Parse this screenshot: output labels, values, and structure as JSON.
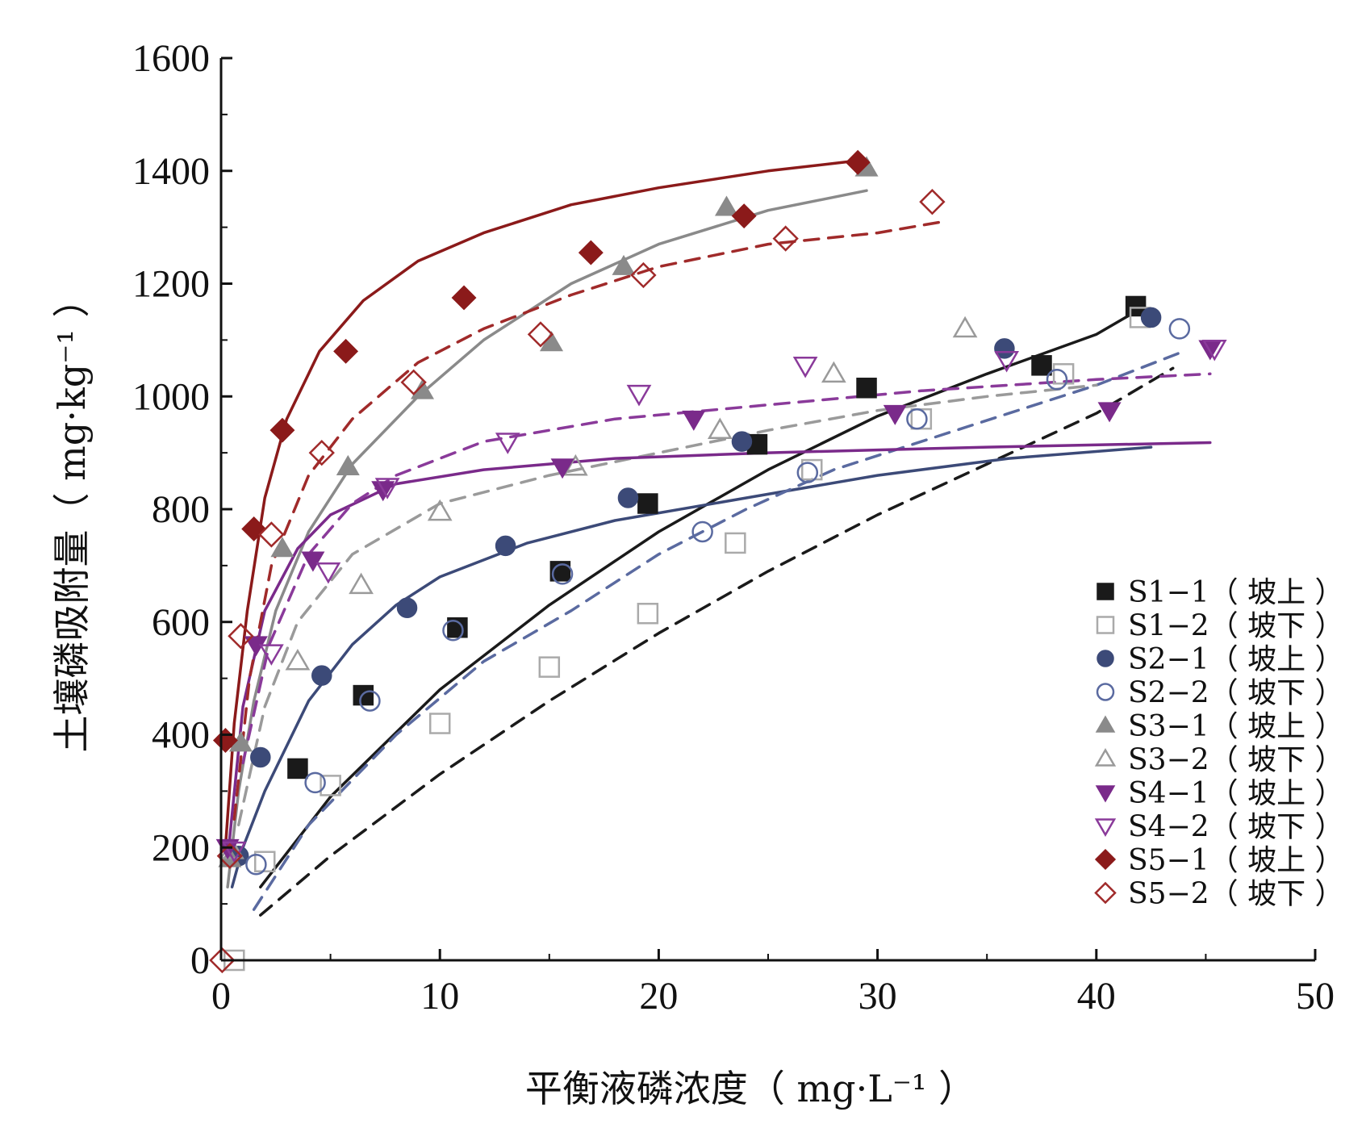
{
  "chart_data": {
    "type": "scatter",
    "xlabel": "平衡液磷浓度（ mg·L⁻¹ ）",
    "ylabel": "土壤磷吸附量（ mg·kg⁻¹ ）",
    "xlim": [
      0,
      50
    ],
    "ylim": [
      0,
      1600
    ],
    "xticks": [
      0,
      10,
      20,
      30,
      40,
      50
    ],
    "yticks": [
      0,
      200,
      400,
      600,
      800,
      1000,
      1200,
      1400,
      1600
    ],
    "grid": false,
    "legend_position": "bottom-right",
    "series": [
      {
        "name": "S1−1（ 坡上 ）",
        "color": "#1a1a1a",
        "marker": "square-filled",
        "line": "solid",
        "points": [
          [
            3.5,
            340
          ],
          [
            6.5,
            470
          ],
          [
            10.8,
            590
          ],
          [
            15.5,
            690
          ],
          [
            19.5,
            810
          ],
          [
            24.5,
            915
          ],
          [
            29.5,
            1015
          ],
          [
            37.5,
            1055
          ],
          [
            41.8,
            1160
          ]
        ],
        "fit": [
          [
            1.8,
            130
          ],
          [
            5,
            290
          ],
          [
            10,
            480
          ],
          [
            15,
            630
          ],
          [
            20,
            760
          ],
          [
            25,
            870
          ],
          [
            30,
            965
          ],
          [
            35,
            1040
          ],
          [
            40,
            1110
          ],
          [
            42,
            1155
          ]
        ]
      },
      {
        "name": "S1−2（ 坡下 ）",
        "color": "#aaaaaa",
        "marker": "square-open",
        "line": "dashed",
        "fit_color": "#1a1a1a",
        "points": [
          [
            0.6,
            0
          ],
          [
            2,
            175
          ],
          [
            5,
            310
          ],
          [
            10,
            420
          ],
          [
            15,
            520
          ],
          [
            19.5,
            615
          ],
          [
            23.5,
            740
          ],
          [
            27,
            870
          ],
          [
            32,
            960
          ],
          [
            38.5,
            1040
          ],
          [
            42,
            1140
          ]
        ],
        "fit": [
          [
            1.8,
            80
          ],
          [
            5,
            185
          ],
          [
            10,
            330
          ],
          [
            15,
            460
          ],
          [
            20,
            580
          ],
          [
            25,
            690
          ],
          [
            30,
            790
          ],
          [
            35,
            880
          ],
          [
            40,
            970
          ],
          [
            43.5,
            1050
          ]
        ]
      },
      {
        "name": "S2−1（ 坡上 ）",
        "color": "#3c4a78",
        "marker": "circle-filled",
        "line": "solid",
        "points": [
          [
            0.8,
            185
          ],
          [
            1.8,
            360
          ],
          [
            4.6,
            505
          ],
          [
            8.5,
            625
          ],
          [
            13,
            735
          ],
          [
            18.6,
            820
          ],
          [
            23.8,
            920
          ],
          [
            35.8,
            1085
          ],
          [
            42.5,
            1140
          ]
        ],
        "fit": [
          [
            0.5,
            130
          ],
          [
            1,
            200
          ],
          [
            2,
            300
          ],
          [
            4,
            460
          ],
          [
            6,
            560
          ],
          [
            8,
            630
          ],
          [
            10,
            680
          ],
          [
            14,
            740
          ],
          [
            18,
            780
          ],
          [
            24,
            820
          ],
          [
            30,
            860
          ],
          [
            36,
            890
          ],
          [
            42.5,
            910
          ]
        ]
      },
      {
        "name": "S2−2（ 坡下 ）",
        "color": "#5a6aa0",
        "marker": "circle-open",
        "line": "dashed",
        "points": [
          [
            1.6,
            170
          ],
          [
            4.3,
            315
          ],
          [
            6.8,
            460
          ],
          [
            10.6,
            585
          ],
          [
            15.6,
            685
          ],
          [
            22,
            760
          ],
          [
            26.8,
            865
          ],
          [
            31.8,
            960
          ],
          [
            38.2,
            1030
          ],
          [
            43.8,
            1120
          ]
        ],
        "fit": [
          [
            1.5,
            90
          ],
          [
            4,
            240
          ],
          [
            8,
            400
          ],
          [
            12,
            530
          ],
          [
            16,
            620
          ],
          [
            20,
            720
          ],
          [
            24,
            800
          ],
          [
            28,
            870
          ],
          [
            32,
            920
          ],
          [
            36,
            970
          ],
          [
            40,
            1020
          ],
          [
            44,
            1080
          ]
        ]
      },
      {
        "name": "S3−1（ 坡上 ）",
        "color": "#8a8a8a",
        "marker": "triangle-filled",
        "line": "solid",
        "points": [
          [
            0.4,
            180
          ],
          [
            0.9,
            385
          ],
          [
            2.8,
            730
          ],
          [
            5.8,
            875
          ],
          [
            9.2,
            1010
          ],
          [
            15.1,
            1095
          ],
          [
            18.4,
            1230
          ],
          [
            23.1,
            1335
          ],
          [
            29.5,
            1405
          ]
        ],
        "fit": [
          [
            0.3,
            130
          ],
          [
            0.8,
            300
          ],
          [
            1.5,
            460
          ],
          [
            2.5,
            620
          ],
          [
            4,
            760
          ],
          [
            6,
            880
          ],
          [
            9,
            1000
          ],
          [
            12,
            1100
          ],
          [
            16,
            1200
          ],
          [
            20,
            1270
          ],
          [
            25,
            1330
          ],
          [
            29.5,
            1365
          ]
        ]
      },
      {
        "name": "S3−2（ 坡下 ）",
        "color": "#9a9a9a",
        "marker": "triangle-open",
        "line": "dashed",
        "points": [
          [
            0.5,
            195
          ],
          [
            3.5,
            530
          ],
          [
            6.4,
            665
          ],
          [
            10,
            795
          ],
          [
            16.2,
            875
          ],
          [
            22.8,
            940
          ],
          [
            28,
            1040
          ],
          [
            34,
            1120
          ]
        ],
        "fit": [
          [
            0.8,
            240
          ],
          [
            2,
            450
          ],
          [
            3.5,
            600
          ],
          [
            6,
            720
          ],
          [
            10,
            810
          ],
          [
            15,
            860
          ],
          [
            20,
            900
          ],
          [
            25,
            940
          ],
          [
            30,
            975
          ],
          [
            35,
            1000
          ],
          [
            40,
            1020
          ]
        ]
      },
      {
        "name": "S4−1（ 坡上 ）",
        "color": "#7a2a8a",
        "marker": "triangle-down-filled",
        "line": "solid",
        "points": [
          [
            0.3,
            200
          ],
          [
            1.6,
            560
          ],
          [
            4.2,
            710
          ],
          [
            7.4,
            835
          ],
          [
            15.6,
            875
          ],
          [
            21.6,
            960
          ],
          [
            30.8,
            970
          ],
          [
            40.6,
            975
          ],
          [
            45.2,
            1085
          ]
        ],
        "fit": [
          [
            0.3,
            180
          ],
          [
            1,
            450
          ],
          [
            2,
            620
          ],
          [
            3.5,
            730
          ],
          [
            5,
            790
          ],
          [
            8,
            845
          ],
          [
            12,
            870
          ],
          [
            18,
            890
          ],
          [
            25,
            900
          ],
          [
            35,
            910
          ],
          [
            45.2,
            918
          ]
        ]
      },
      {
        "name": "S4−2（ 坡下 ）",
        "color": "#8a3a9a",
        "marker": "triangle-down-open",
        "line": "dashed",
        "points": [
          [
            0.6,
            195
          ],
          [
            2.3,
            545
          ],
          [
            4.9,
            690
          ],
          [
            7.6,
            840
          ],
          [
            13.1,
            920
          ],
          [
            19.1,
            1005
          ],
          [
            26.7,
            1055
          ],
          [
            35.9,
            1065
          ],
          [
            45.4,
            1085
          ]
        ],
        "fit": [
          [
            1,
            350
          ],
          [
            2.2,
            560
          ],
          [
            4,
            720
          ],
          [
            6,
            810
          ],
          [
            8,
            860
          ],
          [
            12,
            920
          ],
          [
            18,
            960
          ],
          [
            25,
            985
          ],
          [
            32,
            1010
          ],
          [
            40,
            1030
          ],
          [
            45.2,
            1040
          ]
        ]
      },
      {
        "name": "S5−1（ 坡上 ）",
        "color": "#8b1a1a",
        "marker": "diamond-filled",
        "line": "solid",
        "points": [
          [
            0.2,
            390
          ],
          [
            1.5,
            765
          ],
          [
            2.8,
            940
          ],
          [
            5.7,
            1080
          ],
          [
            11.1,
            1175
          ],
          [
            16.9,
            1255
          ],
          [
            23.9,
            1320
          ],
          [
            29.1,
            1415
          ]
        ],
        "fit": [
          [
            0.2,
            200
          ],
          [
            0.6,
            420
          ],
          [
            1.2,
            620
          ],
          [
            2,
            820
          ],
          [
            3,
            960
          ],
          [
            4.5,
            1080
          ],
          [
            6.5,
            1170
          ],
          [
            9,
            1240
          ],
          [
            12,
            1290
          ],
          [
            16,
            1340
          ],
          [
            20,
            1370
          ],
          [
            25,
            1400
          ],
          [
            29.5,
            1420
          ]
        ]
      },
      {
        "name": "S5−2（ 坡下 ）",
        "color": "#a02a2a",
        "marker": "diamond-open",
        "line": "dashed",
        "points": [
          [
            0.05,
            0
          ],
          [
            0.4,
            185
          ],
          [
            0.9,
            575
          ],
          [
            2.3,
            755
          ],
          [
            4.6,
            900
          ],
          [
            8.8,
            1025
          ],
          [
            14.6,
            1110
          ],
          [
            19.3,
            1215
          ],
          [
            25.8,
            1280
          ],
          [
            32.5,
            1345
          ]
        ],
        "fit": [
          [
            0.6,
            250
          ],
          [
            1.3,
            500
          ],
          [
            2.3,
            700
          ],
          [
            4,
            860
          ],
          [
            6,
            960
          ],
          [
            9,
            1060
          ],
          [
            12,
            1120
          ],
          [
            16,
            1180
          ],
          [
            20,
            1230
          ],
          [
            25,
            1270
          ],
          [
            30,
            1290
          ],
          [
            33,
            1310
          ]
        ]
      }
    ]
  }
}
